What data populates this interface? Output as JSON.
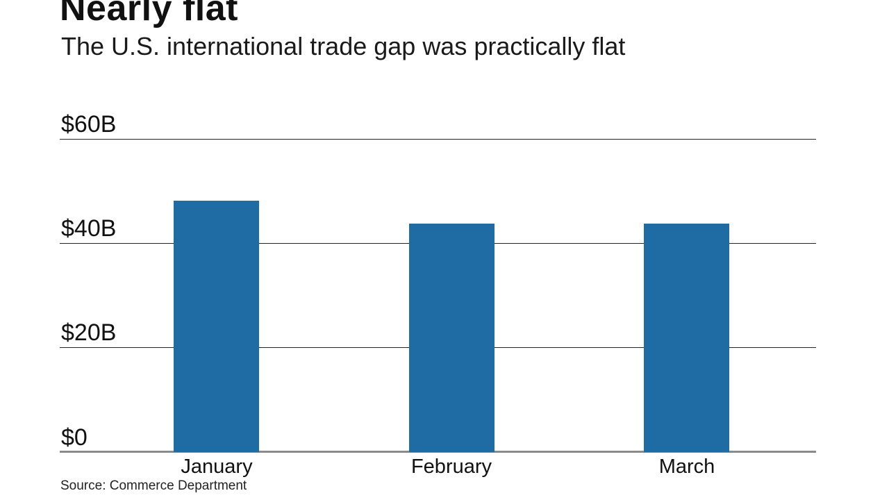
{
  "chart": {
    "title": "Nearly flat",
    "subtitle": "The U.S. international trade gap was practically flat",
    "source": "Source: Commerce Department"
  },
  "chart_data": {
    "type": "bar",
    "title": "Nearly flat",
    "subtitle": "The U.S. international trade gap was practically flat",
    "source": "Source: Commerce Department",
    "categories": [
      "January",
      "February",
      "March"
    ],
    "values": [
      48.2,
      43.7,
      43.7
    ],
    "unit": "billions of U.S. dollars",
    "ylim": [
      0,
      60
    ],
    "yticks": [
      {
        "value": 60,
        "label": "$60B"
      },
      {
        "value": 40,
        "label": "$40B"
      },
      {
        "value": 20,
        "label": "$20B"
      },
      {
        "value": 0,
        "label": "$0"
      }
    ],
    "grid": "horizontal",
    "legend": "none",
    "colors": {
      "bar": "#1f6ba3",
      "gridline": "#222222",
      "zero_axis": "#8a8a8a",
      "text": "#111111"
    }
  }
}
